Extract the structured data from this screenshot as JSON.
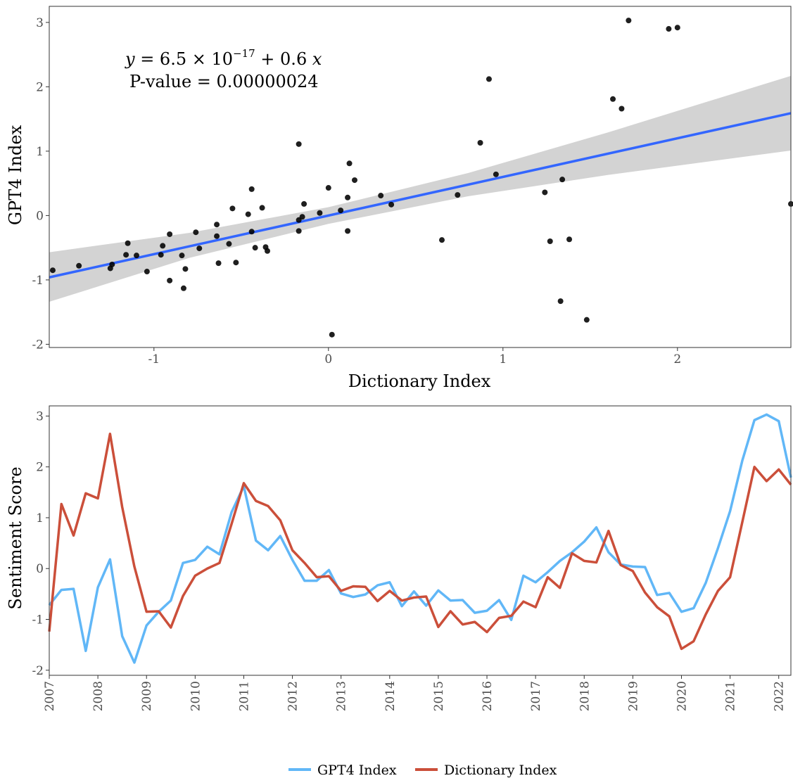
{
  "chart_data": [
    {
      "type": "scatter",
      "xlabel": "Dictionary Index",
      "ylabel": "GPT4 Index",
      "xlim": [
        -1.6,
        2.65
      ],
      "ylim": [
        -2.05,
        3.25
      ],
      "xticks": [
        "-1",
        "0",
        "1",
        "2"
      ],
      "xtick_values": [
        -1,
        0,
        1,
        2
      ],
      "yticks": [
        "-2",
        "-1",
        "0",
        "1",
        "2",
        "3"
      ],
      "ytick_values": [
        -2,
        -1,
        0,
        1,
        2,
        3
      ],
      "grid": false,
      "annotation": {
        "equation": {
          "y": "y",
          "eq": " = 6.5 × 10",
          "exp": "−17",
          "rest": " + 0.6 ",
          "x": "x"
        },
        "pvalue": "P-value = 0.00000024"
      },
      "regression": {
        "intercept": 0.0,
        "slope": 0.6,
        "color": "#3366FF",
        "band_color": "#d3d3d3",
        "band": [
          [
            -1.6,
            -1.34,
            -0.57
          ],
          [
            -0.8,
            -0.66,
            -0.27
          ],
          [
            0,
            -0.13,
            0.13
          ],
          [
            0.8,
            0.3,
            0.66
          ],
          [
            1.6,
            0.63,
            1.29
          ],
          [
            2.65,
            1.01,
            2.17
          ]
        ]
      },
      "point_color": "#000000",
      "points": [
        [
          -1.58,
          -0.85
        ],
        [
          -1.43,
          -0.78
        ],
        [
          -1.25,
          -0.82
        ],
        [
          -1.24,
          -0.76
        ],
        [
          -1.16,
          -0.61
        ],
        [
          -1.15,
          -0.43
        ],
        [
          -1.1,
          -0.62
        ],
        [
          -1.04,
          -0.87
        ],
        [
          -0.96,
          -0.61
        ],
        [
          -0.95,
          -0.47
        ],
        [
          -0.91,
          -0.29
        ],
        [
          -0.91,
          -1.01
        ],
        [
          -0.84,
          -0.62
        ],
        [
          -0.83,
          -1.13
        ],
        [
          -0.82,
          -0.83
        ],
        [
          -0.76,
          -0.26
        ],
        [
          -0.74,
          -0.51
        ],
        [
          -0.64,
          -0.14
        ],
        [
          -0.64,
          -0.32
        ],
        [
          -0.63,
          -0.74
        ],
        [
          -0.57,
          -0.44
        ],
        [
          -0.55,
          0.11
        ],
        [
          -0.53,
          -0.73
        ],
        [
          -0.46,
          0.02
        ],
        [
          -0.44,
          -0.25
        ],
        [
          -0.44,
          0.41
        ],
        [
          -0.42,
          -0.5
        ],
        [
          -0.38,
          0.12
        ],
        [
          -0.36,
          -0.49
        ],
        [
          -0.35,
          -0.55
        ],
        [
          -0.17,
          1.11
        ],
        [
          -0.17,
          -0.07
        ],
        [
          -0.17,
          -0.24
        ],
        [
          -0.15,
          -0.02
        ],
        [
          -0.14,
          0.18
        ],
        [
          -0.05,
          0.04
        ],
        [
          0.0,
          0.43
        ],
        [
          0.02,
          -1.85
        ],
        [
          0.07,
          0.08
        ],
        [
          0.11,
          -0.24
        ],
        [
          0.11,
          0.28
        ],
        [
          0.12,
          0.81
        ],
        [
          0.15,
          0.55
        ],
        [
          0.3,
          0.31
        ],
        [
          0.36,
          0.17
        ],
        [
          0.65,
          -0.38
        ],
        [
          0.74,
          0.32
        ],
        [
          0.87,
          1.13
        ],
        [
          0.92,
          2.12
        ],
        [
          0.96,
          0.64
        ],
        [
          1.24,
          0.36
        ],
        [
          1.27,
          -0.4
        ],
        [
          1.33,
          -1.33
        ],
        [
          1.34,
          0.56
        ],
        [
          1.38,
          -0.37
        ],
        [
          1.48,
          -1.62
        ],
        [
          1.63,
          1.81
        ],
        [
          1.68,
          1.66
        ],
        [
          1.72,
          3.03
        ],
        [
          1.95,
          2.9
        ],
        [
          2.0,
          2.92
        ],
        [
          2.65,
          0.18
        ]
      ]
    },
    {
      "type": "line",
      "xlabel": "",
      "ylabel": "Sentiment Score",
      "xlim": [
        2007.0,
        2022.25
      ],
      "ylim": [
        -2.1,
        3.2
      ],
      "xticks": [
        "2007",
        "2008",
        "2009",
        "2010",
        "2011",
        "2012",
        "2013",
        "2014",
        "2015",
        "2016",
        "2017",
        "2018",
        "2019",
        "2020",
        "2021",
        "2022"
      ],
      "xtick_values": [
        2007,
        2008,
        2009,
        2010,
        2011,
        2012,
        2013,
        2014,
        2015,
        2016,
        2017,
        2018,
        2019,
        2020,
        2021,
        2022
      ],
      "yticks": [
        "-2",
        "-1",
        "0",
        "1",
        "2",
        "3"
      ],
      "ytick_values": [
        -2,
        -1,
        0,
        1,
        2,
        3
      ],
      "grid": false,
      "legend_position": "bottom",
      "x": [
        2007.0,
        2007.25,
        2007.5,
        2007.75,
        2008.0,
        2008.25,
        2008.5,
        2008.75,
        2009.0,
        2009.25,
        2009.5,
        2009.75,
        2010.0,
        2010.25,
        2010.5,
        2010.75,
        2011.0,
        2011.25,
        2011.5,
        2011.75,
        2012.0,
        2012.25,
        2012.5,
        2012.75,
        2013.0,
        2013.25,
        2013.5,
        2013.75,
        2014.0,
        2014.25,
        2014.5,
        2014.75,
        2015.0,
        2015.25,
        2015.5,
        2015.75,
        2016.0,
        2016.25,
        2016.5,
        2016.75,
        2017.0,
        2017.25,
        2017.5,
        2017.75,
        2018.0,
        2018.25,
        2018.5,
        2018.75,
        2019.0,
        2019.25,
        2019.5,
        2019.75,
        2020.0,
        2020.25,
        2020.5,
        2020.75,
        2021.0,
        2021.25,
        2021.5,
        2021.75,
        2022.0,
        2022.25
      ],
      "series": [
        {
          "name": "GPT4 Index",
          "color": "#61B7F7",
          "values": [
            -0.72,
            -0.42,
            -0.4,
            -1.62,
            -0.37,
            0.18,
            -1.33,
            -1.85,
            -1.12,
            -0.85,
            -0.63,
            0.11,
            0.17,
            0.43,
            0.28,
            1.11,
            1.62,
            0.55,
            0.36,
            0.64,
            0.17,
            -0.24,
            -0.24,
            -0.03,
            -0.49,
            -0.56,
            -0.51,
            -0.33,
            -0.27,
            -0.74,
            -0.45,
            -0.73,
            -0.43,
            -0.63,
            -0.62,
            -0.87,
            -0.83,
            -0.62,
            -1.01,
            -0.14,
            -0.27,
            -0.07,
            0.15,
            0.32,
            0.53,
            0.81,
            0.32,
            0.08,
            0.04,
            0.03,
            -0.52,
            -0.48,
            -0.85,
            -0.78,
            -0.28,
            0.4,
            1.13,
            2.12,
            2.92,
            3.03,
            2.9,
            1.79
          ]
        },
        {
          "name": "Dictionary Index",
          "color": "#CB4F3A",
          "values": [
            -1.24,
            1.27,
            0.65,
            1.48,
            1.38,
            2.65,
            1.21,
            0.04,
            -0.85,
            -0.84,
            -1.16,
            -0.54,
            -0.14,
            0.0,
            0.11,
            0.88,
            1.68,
            1.33,
            1.23,
            0.95,
            0.36,
            0.11,
            -0.17,
            -0.15,
            -0.44,
            -0.35,
            -0.36,
            -0.64,
            -0.44,
            -0.63,
            -0.57,
            -0.55,
            -1.15,
            -0.84,
            -1.1,
            -1.05,
            -1.25,
            -0.97,
            -0.93,
            -0.65,
            -0.76,
            -0.17,
            -0.38,
            0.3,
            0.15,
            0.12,
            0.74,
            0.07,
            -0.05,
            -0.47,
            -0.76,
            -0.94,
            -1.58,
            -1.43,
            -0.9,
            -0.44,
            -0.17,
            0.91,
            2.0,
            1.72,
            1.95,
            1.65
          ]
        }
      ]
    }
  ]
}
